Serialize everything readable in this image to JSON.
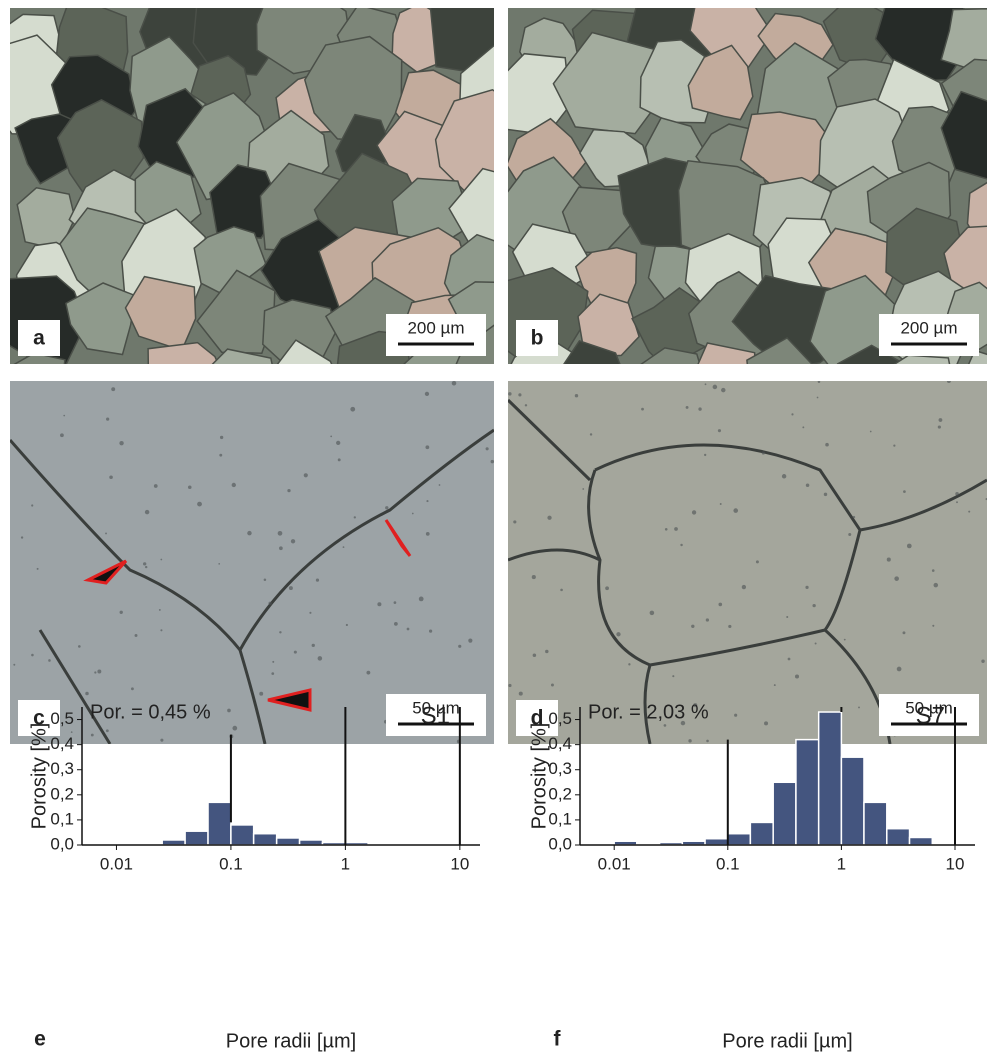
{
  "panels": [
    {
      "label": "a",
      "scale_bar": "200 µm"
    },
    {
      "label": "b",
      "scale_bar": "200 µm"
    },
    {
      "label": "c",
      "scale_bar": "50 µm"
    },
    {
      "label": "d",
      "scale_bar": "50 µm"
    }
  ],
  "chart_data": [
    {
      "type": "histogram",
      "panel_label": "e",
      "annotation": "Por. = 0,45 %",
      "sample": "S1",
      "x_label": "Pore radii [µm]",
      "y_label": "Porosity [%]",
      "log_x": true,
      "color": "#44557f",
      "bins": [
        0.01,
        0.0158,
        0.0251,
        0.0398,
        0.0631,
        0.1,
        0.158,
        0.251,
        0.398,
        0.631,
        1,
        1.58,
        2.51,
        3.98,
        6.31,
        10
      ],
      "values": [
        0,
        0,
        0.02,
        0.055,
        0.17,
        0.08,
        0.045,
        0.028,
        0.02,
        0.01,
        0.01,
        0,
        0,
        0.005,
        0
      ],
      "reference_lines": [
        {
          "x": 0.1,
          "y": [
            0.09,
            0.44
          ]
        },
        {
          "x": 1,
          "y": [
            0,
            0.55
          ]
        },
        {
          "x": 10,
          "y": [
            0,
            0.55
          ]
        }
      ],
      "xlim": [
        0.005,
        15
      ],
      "xticks": [
        0.01,
        0.1,
        1,
        10
      ],
      "ylim": [
        0,
        0.55
      ],
      "yticks": [
        {
          "value": 0,
          "label": "0,0"
        },
        {
          "value": 0.1,
          "label": "0,1"
        },
        {
          "value": 0.2,
          "label": "0,2"
        },
        {
          "value": 0.3,
          "label": "0,3"
        },
        {
          "value": 0.4,
          "label": "0,4"
        },
        {
          "value": 0.5,
          "label": "0,5"
        }
      ]
    },
    {
      "type": "histogram",
      "panel_label": "f",
      "annotation": "Por. = 2,03 %",
      "sample": "S7",
      "x_label": "Pore radii [µm]",
      "y_label": "Porosity [%]",
      "log_x": true,
      "color": "#44557f",
      "bins": [
        0.01,
        0.0158,
        0.0251,
        0.0398,
        0.0631,
        0.1,
        0.158,
        0.251,
        0.398,
        0.631,
        1,
        1.58,
        2.51,
        3.98,
        6.31,
        10
      ],
      "values": [
        0.015,
        0,
        0.01,
        0.015,
        0.025,
        0.045,
        0.09,
        0.25,
        0.42,
        0.53,
        0.35,
        0.17,
        0.065,
        0.03,
        0
      ],
      "reference_lines": [
        {
          "x": 0.1,
          "y": [
            0,
            0.42
          ]
        },
        {
          "x": 1,
          "y": [
            0.53,
            0.55
          ]
        },
        {
          "x": 10,
          "y": [
            0,
            0.55
          ]
        }
      ],
      "xlim": [
        0.005,
        15
      ],
      "xticks": [
        0.01,
        0.1,
        1,
        10
      ],
      "ylim": [
        0,
        0.55
      ],
      "yticks": [
        {
          "value": 0,
          "label": "0,0"
        },
        {
          "value": 0.1,
          "label": "0,1"
        },
        {
          "value": 0.2,
          "label": "0,2"
        },
        {
          "value": 0.3,
          "label": "0,3"
        },
        {
          "value": 0.4,
          "label": "0,4"
        },
        {
          "value": 0.5,
          "label": "0,5"
        }
      ]
    }
  ]
}
